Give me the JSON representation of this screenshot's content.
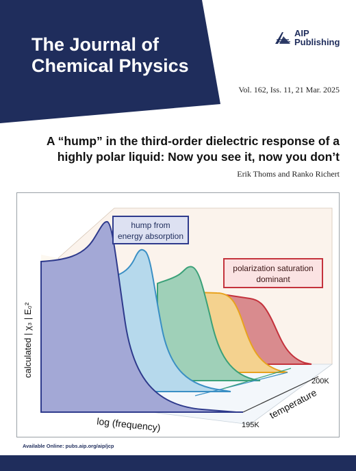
{
  "journal": {
    "title": "The Journal of Chemical Physics",
    "publisher_line1": "AIP",
    "publisher_line2": "Publishing",
    "issue": "Vol. 162, Iss. 11, 21 Mar. 2025"
  },
  "article": {
    "title": "A “hump” in the third-order dielectric response of a highly polar liquid: Now you see it, now you don’t",
    "authors": "Erik Thoms and Ranko Richert"
  },
  "figure": {
    "annotation_hump_1": "hump from",
    "annotation_hump_2": "energy absorption",
    "annotation_sat_1": "polarization saturation",
    "annotation_sat_2": "dominant",
    "y_axis_label": "calculated | χ₃ | E₀²",
    "x_axis_label": "log (frequency)",
    "z_axis_label": "temperature",
    "temp_low": "195K",
    "temp_high": "200K"
  },
  "footer": {
    "available": "Available Online: pubs.aip.org/aip/jcp"
  },
  "colors": {
    "navy": "#1f2d5c",
    "curve_blue": "#2e3a8c",
    "curve_lightblue": "#3a8fc4",
    "curve_green": "#3aa078",
    "curve_orange": "#e8a21e",
    "curve_red": "#c4323c"
  }
}
